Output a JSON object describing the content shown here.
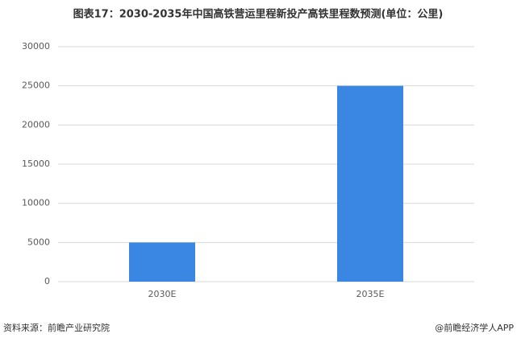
{
  "chart_data": {
    "type": "bar",
    "title": "图表17：2030-2035年中国高铁营运里程新投产高铁里程数预测(单位：公里)",
    "categories": [
      "2030E",
      "2035E"
    ],
    "values": [
      5000,
      25000
    ],
    "color": "#3a87e3",
    "ylim": [
      0,
      30000
    ],
    "yticks": [
      0,
      5000,
      10000,
      15000,
      20000,
      25000,
      30000
    ],
    "grid": true,
    "source": "资料来源：前瞻产业研究院",
    "credit": "@前瞻经济学人APP"
  }
}
